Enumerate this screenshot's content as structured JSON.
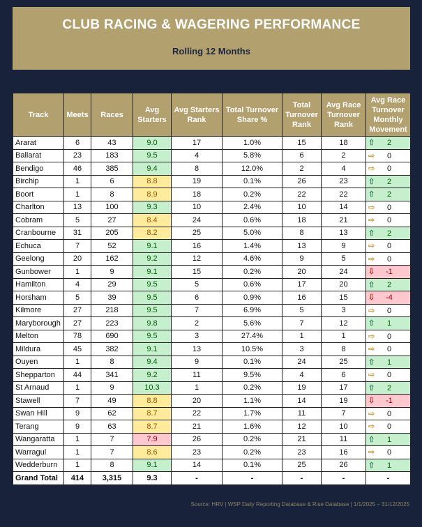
{
  "header": {
    "title": "CLUB RACING & WAGERING PERFORMANCE",
    "subtitle": "Rolling 12 Months"
  },
  "columns": [
    "Track",
    "Meets",
    "Races",
    "Avg Starters",
    "Avg Starters Rank",
    "Total Turnover Share %",
    "Total Turnover Rank",
    "Avg Race Turnover Rank",
    "Avg Race Turnover Monthly Movement"
  ],
  "colors": {
    "good_fill": "#c6efce",
    "warn_fill": "#ffeb9c",
    "bad_fill": "#ffc7ce",
    "gold": "#b3a06f",
    "navy": "#18223a"
  },
  "rows": [
    {
      "track": "Ararat",
      "meets": "6",
      "races": "43",
      "avg": "9.0",
      "avg_status": "good",
      "avg_rank": "17",
      "share": "1.0%",
      "to_rank": "15",
      "race_rank": "18",
      "move": "2",
      "move_dir": "up"
    },
    {
      "track": "Ballarat",
      "meets": "23",
      "races": "183",
      "avg": "9.5",
      "avg_status": "good",
      "avg_rank": "4",
      "share": "5.8%",
      "to_rank": "6",
      "race_rank": "2",
      "move": "0",
      "move_dir": "flat"
    },
    {
      "track": "Bendigo",
      "meets": "46",
      "races": "385",
      "avg": "9.4",
      "avg_status": "good",
      "avg_rank": "8",
      "share": "12.0%",
      "to_rank": "2",
      "race_rank": "4",
      "move": "0",
      "move_dir": "flat"
    },
    {
      "track": "Birchip",
      "meets": "1",
      "races": "6",
      "avg": "8.8",
      "avg_status": "warn",
      "avg_rank": "19",
      "share": "0.1%",
      "to_rank": "26",
      "race_rank": "23",
      "move": "2",
      "move_dir": "up"
    },
    {
      "track": "Boort",
      "meets": "1",
      "races": "8",
      "avg": "8.9",
      "avg_status": "warn",
      "avg_rank": "18",
      "share": "0.2%",
      "to_rank": "22",
      "race_rank": "22",
      "move": "2",
      "move_dir": "up"
    },
    {
      "track": "Charlton",
      "meets": "13",
      "races": "100",
      "avg": "9.3",
      "avg_status": "good",
      "avg_rank": "10",
      "share": "2.4%",
      "to_rank": "10",
      "race_rank": "14",
      "move": "0",
      "move_dir": "flat"
    },
    {
      "track": "Cobram",
      "meets": "5",
      "races": "27",
      "avg": "8.4",
      "avg_status": "warn",
      "avg_rank": "24",
      "share": "0.6%",
      "to_rank": "18",
      "race_rank": "21",
      "move": "0",
      "move_dir": "flat"
    },
    {
      "track": "Cranbourne",
      "meets": "31",
      "races": "205",
      "avg": "8.2",
      "avg_status": "warn",
      "avg_rank": "25",
      "share": "5.0%",
      "to_rank": "8",
      "race_rank": "13",
      "move": "2",
      "move_dir": "up"
    },
    {
      "track": "Echuca",
      "meets": "7",
      "races": "52",
      "avg": "9.1",
      "avg_status": "good",
      "avg_rank": "16",
      "share": "1.4%",
      "to_rank": "13",
      "race_rank": "9",
      "move": "0",
      "move_dir": "flat"
    },
    {
      "track": "Geelong",
      "meets": "20",
      "races": "162",
      "avg": "9.2",
      "avg_status": "good",
      "avg_rank": "12",
      "share": "4.6%",
      "to_rank": "9",
      "race_rank": "5",
      "move": "0",
      "move_dir": "flat"
    },
    {
      "track": "Gunbower",
      "meets": "1",
      "races": "9",
      "avg": "9.1",
      "avg_status": "good",
      "avg_rank": "15",
      "share": "0.2%",
      "to_rank": "20",
      "race_rank": "24",
      "move": "-1",
      "move_dir": "down"
    },
    {
      "track": "Hamilton",
      "meets": "4",
      "races": "29",
      "avg": "9.5",
      "avg_status": "good",
      "avg_rank": "5",
      "share": "0.6%",
      "to_rank": "17",
      "race_rank": "20",
      "move": "2",
      "move_dir": "up"
    },
    {
      "track": "Horsham",
      "meets": "5",
      "races": "39",
      "avg": "9.5",
      "avg_status": "good",
      "avg_rank": "6",
      "share": "0.9%",
      "to_rank": "16",
      "race_rank": "15",
      "move": "-4",
      "move_dir": "down"
    },
    {
      "track": "Kilmore",
      "meets": "27",
      "races": "218",
      "avg": "9.5",
      "avg_status": "good",
      "avg_rank": "7",
      "share": "6.9%",
      "to_rank": "5",
      "race_rank": "3",
      "move": "0",
      "move_dir": "flat"
    },
    {
      "track": "Maryborough",
      "meets": "27",
      "races": "223",
      "avg": "9.8",
      "avg_status": "good",
      "avg_rank": "2",
      "share": "5.6%",
      "to_rank": "7",
      "race_rank": "12",
      "move": "1",
      "move_dir": "up"
    },
    {
      "track": "Melton",
      "meets": "78",
      "races": "690",
      "avg": "9.5",
      "avg_status": "good",
      "avg_rank": "3",
      "share": "27.4%",
      "to_rank": "1",
      "race_rank": "1",
      "move": "0",
      "move_dir": "flat"
    },
    {
      "track": "Mildura",
      "meets": "45",
      "races": "382",
      "avg": "9.1",
      "avg_status": "good",
      "avg_rank": "13",
      "share": "10.5%",
      "to_rank": "3",
      "race_rank": "8",
      "move": "0",
      "move_dir": "flat"
    },
    {
      "track": "Ouyen",
      "meets": "1",
      "races": "8",
      "avg": "9.4",
      "avg_status": "good",
      "avg_rank": "9",
      "share": "0.1%",
      "to_rank": "24",
      "race_rank": "25",
      "move": "1",
      "move_dir": "up"
    },
    {
      "track": "Shepparton",
      "meets": "44",
      "races": "341",
      "avg": "9.2",
      "avg_status": "good",
      "avg_rank": "11",
      "share": "9.5%",
      "to_rank": "4",
      "race_rank": "6",
      "move": "0",
      "move_dir": "flat"
    },
    {
      "track": "St Arnaud",
      "meets": "1",
      "races": "9",
      "avg": "10.3",
      "avg_status": "good",
      "avg_rank": "1",
      "share": "0.2%",
      "to_rank": "19",
      "race_rank": "17",
      "move": "2",
      "move_dir": "up"
    },
    {
      "track": "Stawell",
      "meets": "7",
      "races": "49",
      "avg": "8.8",
      "avg_status": "warn",
      "avg_rank": "20",
      "share": "1.1%",
      "to_rank": "14",
      "race_rank": "19",
      "move": "-1",
      "move_dir": "down"
    },
    {
      "track": "Swan Hill",
      "meets": "9",
      "races": "62",
      "avg": "8.7",
      "avg_status": "warn",
      "avg_rank": "22",
      "share": "1.7%",
      "to_rank": "11",
      "race_rank": "7",
      "move": "0",
      "move_dir": "flat"
    },
    {
      "track": "Terang",
      "meets": "9",
      "races": "63",
      "avg": "8.7",
      "avg_status": "warn",
      "avg_rank": "21",
      "share": "1.6%",
      "to_rank": "12",
      "race_rank": "10",
      "move": "0",
      "move_dir": "flat"
    },
    {
      "track": "Wangaratta",
      "meets": "1",
      "races": "7",
      "avg": "7.9",
      "avg_status": "bad",
      "avg_rank": "26",
      "share": "0.2%",
      "to_rank": "21",
      "race_rank": "11",
      "move": "1",
      "move_dir": "up"
    },
    {
      "track": "Warragul",
      "meets": "1",
      "races": "7",
      "avg": "8.6",
      "avg_status": "warn",
      "avg_rank": "23",
      "share": "0.2%",
      "to_rank": "23",
      "race_rank": "16",
      "move": "0",
      "move_dir": "flat"
    },
    {
      "track": "Wedderburn",
      "meets": "1",
      "races": "8",
      "avg": "9.1",
      "avg_status": "good",
      "avg_rank": "14",
      "share": "0.1%",
      "to_rank": "25",
      "race_rank": "26",
      "move": "1",
      "move_dir": "up"
    }
  ],
  "total": {
    "track": "Grand Total",
    "meets": "414",
    "races": "3,315",
    "avg": "9.3",
    "avg_rank": "-",
    "share": "-",
    "to_rank": "-",
    "race_rank": "-",
    "move": "-"
  },
  "footer": {
    "source": "Source: HRV | WSP Daily Reporting Database & Rise Database | 1/1/2025 – 31/12/2025"
  }
}
